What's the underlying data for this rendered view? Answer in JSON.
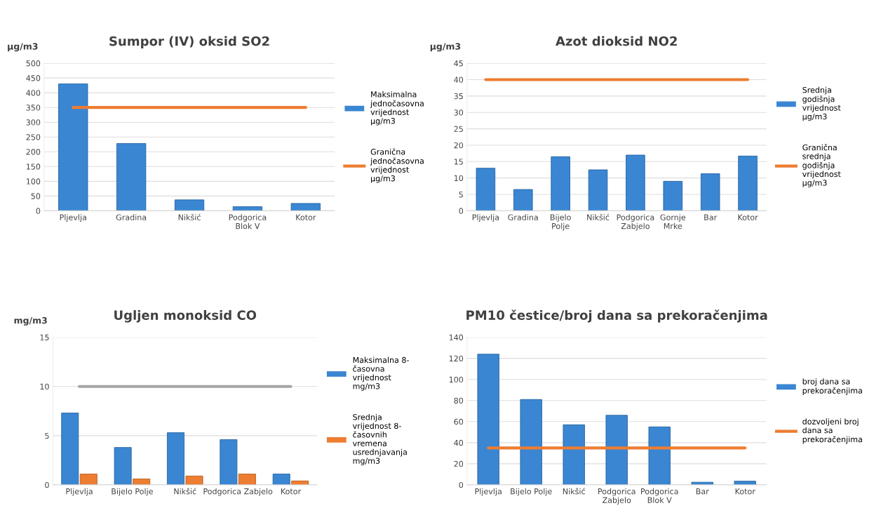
{
  "chart_data": [
    {
      "type": "bar",
      "title": "Sumpor (IV) oksid SO2",
      "ylabel": "µg/m3",
      "categories": [
        "Pljevlja",
        "Gradina",
        "Nikšić",
        "Podgorica\nBlok V",
        "Kotor"
      ],
      "series": [
        {
          "name": "Maksimalna\njednočasovna\nvrijednost\nµg/m3",
          "color": "#3a86d2",
          "values": [
            430,
            228,
            37,
            14,
            25
          ]
        },
        {
          "type": "line",
          "name": "Granična\njednočasovna\nvrijednost\nµg/m3",
          "color": "#ed7d31",
          "values": [
            350,
            350,
            350,
            350,
            350
          ]
        }
      ],
      "ylim": [
        0,
        500
      ],
      "yticks": [
        0,
        50,
        100,
        150,
        200,
        250,
        300,
        350,
        400,
        450,
        500
      ],
      "grid": "y",
      "legend": "right"
    },
    {
      "type": "bar",
      "title": "Azot dioksid NO2",
      "ylabel": "µg/m3",
      "categories": [
        "Pljevlja",
        "Gradina",
        "Bijelo\nPolje",
        "Nikšić",
        "Podgorica\nZabjelo",
        "Gornje\nMrke",
        "Bar",
        "Kotor"
      ],
      "series": [
        {
          "name": "Srednja\ngodišnja\nvrijednost\nµg/m3",
          "color": "#3a86d2",
          "values": [
            13,
            6.5,
            16.5,
            12.5,
            17,
            9,
            11.3,
            16.7
          ]
        },
        {
          "type": "line",
          "name": "Granična\nsrednja\ngodišnja\nvrijednost\nµg/m3",
          "color": "#ed7d31",
          "values": [
            40,
            40,
            40,
            40,
            40,
            40,
            40,
            40
          ]
        }
      ],
      "ylim": [
        0,
        45
      ],
      "yticks": [
        0,
        5,
        10,
        15,
        20,
        25,
        30,
        35,
        40,
        45
      ],
      "grid": "y",
      "legend": "right"
    },
    {
      "type": "bar",
      "title": "Ugljen monoksid CO",
      "ylabel": "mg/m3",
      "categories": [
        "Pljevlja",
        "Bijelo Polje",
        "Nikšić",
        "Podgorica Zabjelo",
        "Kotor"
      ],
      "series": [
        {
          "name": "Maksimalna 8-\nčasovna\nvrijednost\nmg/m3",
          "color": "#3a86d2",
          "values": [
            7.3,
            3.8,
            5.3,
            4.6,
            1.1
          ]
        },
        {
          "name": "Srednja\nvrijednost 8-\nčasovnih\nvremena\nusrednjavanja\nmg/m3",
          "color": "#ed7d31",
          "values": [
            1.1,
            0.6,
            0.9,
            1.1,
            0.4
          ]
        },
        {
          "type": "line",
          "color": "#a5a5a5",
          "values": [
            10,
            10,
            10,
            10,
            10
          ]
        }
      ],
      "ylim": [
        0,
        15
      ],
      "yticks": [
        0,
        5,
        10,
        15
      ],
      "grid": "y",
      "legend": "right"
    },
    {
      "type": "bar",
      "title": "PM10 čestice/broj dana sa prekoračenjima",
      "categories": [
        "Pljevlja",
        "Bijelo Polje",
        "Nikšić",
        "Podgorica\nZabjelo",
        "Podgorica\nBlok V",
        "Bar",
        "Kotor"
      ],
      "series": [
        {
          "name": "broj dana sa\nprekoračenjima",
          "color": "#3a86d2",
          "values": [
            124,
            81,
            57,
            66,
            55,
            2.5,
            3.5
          ]
        },
        {
          "type": "line",
          "name": "dozvoljeni broj\ndana sa\nprekoračenjima",
          "color": "#ed7d31",
          "values": [
            35,
            35,
            35,
            35,
            35,
            35,
            35
          ]
        }
      ],
      "ylim": [
        0,
        140
      ],
      "yticks": [
        0,
        20,
        40,
        60,
        80,
        100,
        120,
        140
      ],
      "grid": "y",
      "legend": "right"
    }
  ]
}
